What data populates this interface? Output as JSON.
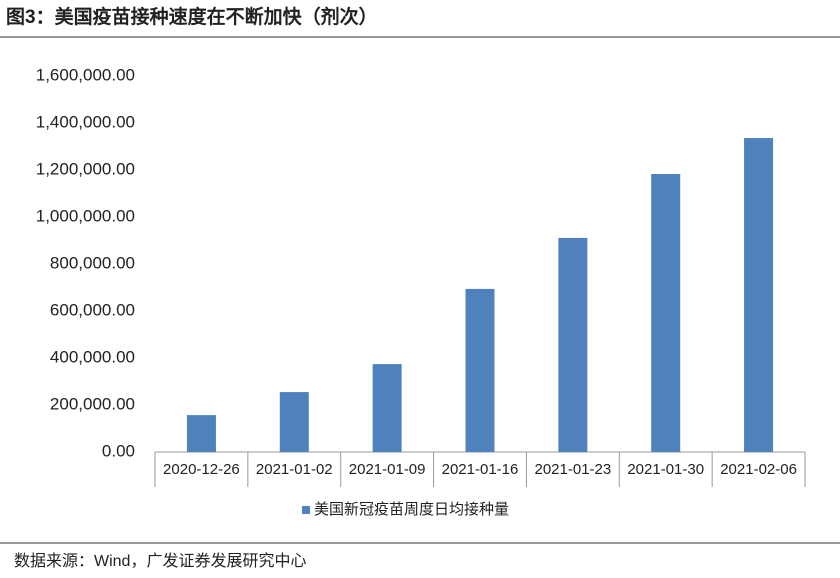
{
  "chart_data": {
    "type": "bar",
    "title": "图3：美国疫苗接种速度在不断加快（剂次）",
    "categories": [
      "2020-12-26",
      "2021-01-02",
      "2021-01-09",
      "2021-01-16",
      "2021-01-23",
      "2021-01-30",
      "2021-02-06"
    ],
    "series": [
      {
        "name": "美国新冠疫苗周度日均接种量",
        "color": "#4f81bd",
        "values": [
          157000,
          255000,
          374000,
          694000,
          911000,
          1183000,
          1336000
        ]
      }
    ],
    "ylim": [
      0,
      1600000
    ],
    "yticks": [
      {
        "value": 0,
        "label": "0.00"
      },
      {
        "value": 200000,
        "label": "200,000.00"
      },
      {
        "value": 400000,
        "label": "400,000.00"
      },
      {
        "value": 600000,
        "label": "600,000.00"
      },
      {
        "value": 800000,
        "label": "800,000.00"
      },
      {
        "value": 1000000,
        "label": "1,000,000.00"
      },
      {
        "value": 1200000,
        "label": "1,200,000.00"
      },
      {
        "value": 1400000,
        "label": "1,400,000.00"
      },
      {
        "value": 1600000,
        "label": "1,600,000.00"
      }
    ],
    "grid": false,
    "legend": "bottom",
    "source": "数据来源：Wind，广发证券发展研究中心"
  }
}
